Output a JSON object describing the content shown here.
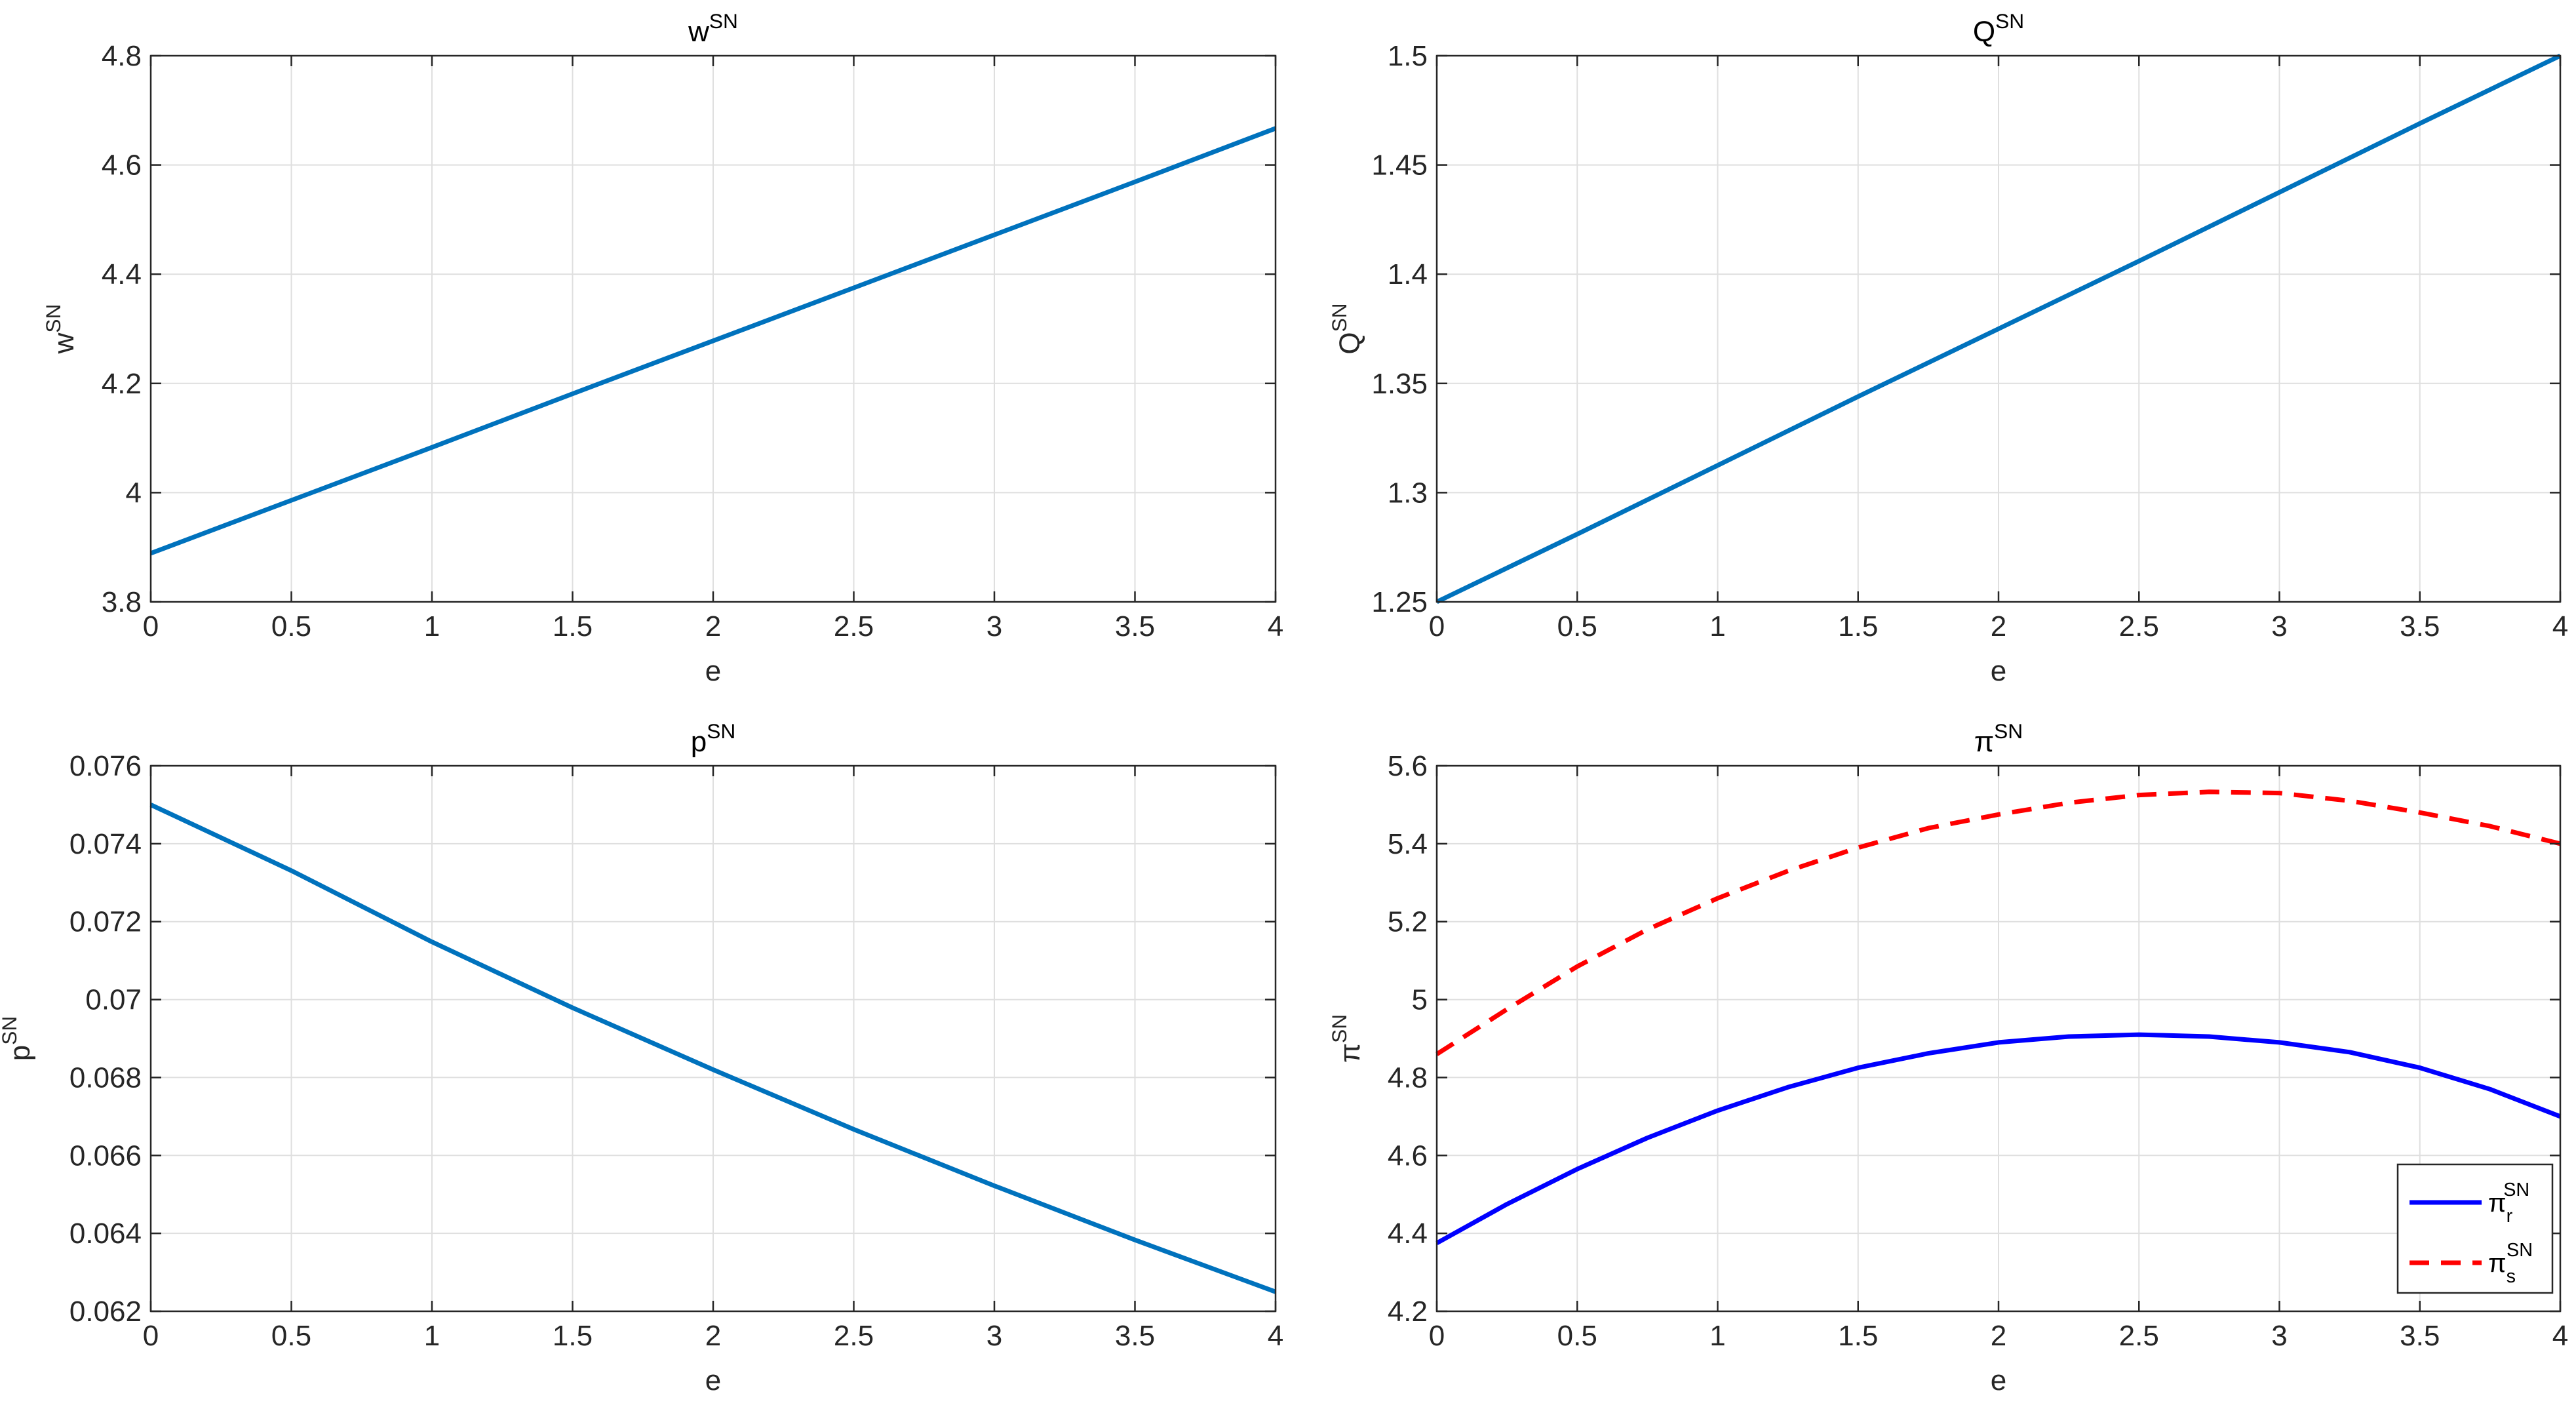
{
  "chart_data": [
    {
      "type": "line",
      "title": "w",
      "title_sup": "SN",
      "xlabel": "e",
      "ylabel": "w",
      "ylabel_sup": "SN",
      "xlim": [
        0,
        4
      ],
      "ylim": [
        3.8,
        4.8
      ],
      "xticks": [
        "0",
        "0.5",
        "1",
        "1.5",
        "2",
        "2.5",
        "3",
        "3.5",
        "4"
      ],
      "yticks": [
        "3.8",
        "4",
        "4.2",
        "4.4",
        "4.6",
        "4.8"
      ],
      "grid": true,
      "series": [
        {
          "color": "#0072BD",
          "dash": "solid",
          "x": [
            0,
            0.5,
            1,
            1.5,
            2,
            2.5,
            3,
            3.5,
            4
          ],
          "y": [
            3.889,
            3.986,
            4.083,
            4.181,
            4.278,
            4.375,
            4.472,
            4.569,
            4.667
          ]
        }
      ]
    },
    {
      "type": "line",
      "title": "Q",
      "title_sup": "SN",
      "xlabel": "e",
      "ylabel": "Q",
      "ylabel_sup": "SN",
      "xlim": [
        0,
        4
      ],
      "ylim": [
        1.25,
        1.5
      ],
      "xticks": [
        "0",
        "0.5",
        "1",
        "1.5",
        "2",
        "2.5",
        "3",
        "3.5",
        "4"
      ],
      "yticks": [
        "1.25",
        "1.3",
        "1.35",
        "1.4",
        "1.45",
        "1.5"
      ],
      "grid": true,
      "series": [
        {
          "color": "#0072BD",
          "dash": "solid",
          "x": [
            0,
            0.5,
            1,
            1.5,
            2,
            2.5,
            3,
            3.5,
            4
          ],
          "y": [
            1.25,
            1.281,
            1.3125,
            1.344,
            1.375,
            1.406,
            1.4375,
            1.469,
            1.5
          ]
        }
      ]
    },
    {
      "type": "line",
      "title": "p",
      "title_sup": "SN",
      "xlabel": "e",
      "ylabel": "p",
      "ylabel_sup": "SN",
      "xlim": [
        0,
        4
      ],
      "ylim": [
        0.062,
        0.076
      ],
      "xticks": [
        "0",
        "0.5",
        "1",
        "1.5",
        "2",
        "2.5",
        "3",
        "3.5",
        "4"
      ],
      "yticks": [
        "0.062",
        "0.064",
        "0.066",
        "0.068",
        "0.07",
        "0.072",
        "0.074",
        "0.076"
      ],
      "grid": true,
      "series": [
        {
          "color": "#0072BD",
          "dash": "solid",
          "x": [
            0,
            0.5,
            1,
            1.5,
            2,
            2.5,
            3,
            3.5,
            4
          ],
          "y": [
            0.075,
            0.07331,
            0.07148,
            0.06979,
            0.0682,
            0.06667,
            0.06522,
            0.06383,
            0.0625
          ]
        }
      ]
    },
    {
      "type": "line",
      "title": "π",
      "title_sup": "SN",
      "xlabel": "e",
      "ylabel": "π",
      "ylabel_sup": "SN",
      "xlim": [
        0,
        4
      ],
      "ylim": [
        4.2,
        5.6
      ],
      "xticks": [
        "0",
        "0.5",
        "1",
        "1.5",
        "2",
        "2.5",
        "3",
        "3.5",
        "4"
      ],
      "yticks": [
        "4.2",
        "4.4",
        "4.6",
        "4.8",
        "5",
        "5.2",
        "5.4",
        "5.6"
      ],
      "grid": true,
      "legend_position": "bottom-right",
      "series": [
        {
          "name": "π",
          "name_sub": "r",
          "name_sup": "SN",
          "color": "#0000FF",
          "dash": "solid",
          "x": [
            0,
            0.25,
            0.5,
            0.75,
            1,
            1.25,
            1.5,
            1.75,
            2,
            2.25,
            2.5,
            2.75,
            3,
            3.25,
            3.5,
            3.75,
            4
          ],
          "y": [
            4.375,
            4.475,
            4.565,
            4.645,
            4.715,
            4.775,
            4.825,
            4.862,
            4.89,
            4.905,
            4.91,
            4.905,
            4.89,
            4.865,
            4.825,
            4.77,
            4.7
          ]
        },
        {
          "name": "π",
          "name_sub": "s",
          "name_sup": "SN",
          "color": "#FF0000",
          "dash": "dashed",
          "x": [
            0,
            0.25,
            0.5,
            0.75,
            1,
            1.25,
            1.5,
            1.75,
            2,
            2.25,
            2.5,
            2.75,
            3,
            3.25,
            3.5,
            3.75,
            4
          ],
          "y": [
            4.86,
            4.975,
            5.085,
            5.18,
            5.26,
            5.33,
            5.39,
            5.44,
            5.475,
            5.505,
            5.525,
            5.533,
            5.53,
            5.51,
            5.48,
            5.445,
            5.4
          ]
        }
      ]
    }
  ]
}
